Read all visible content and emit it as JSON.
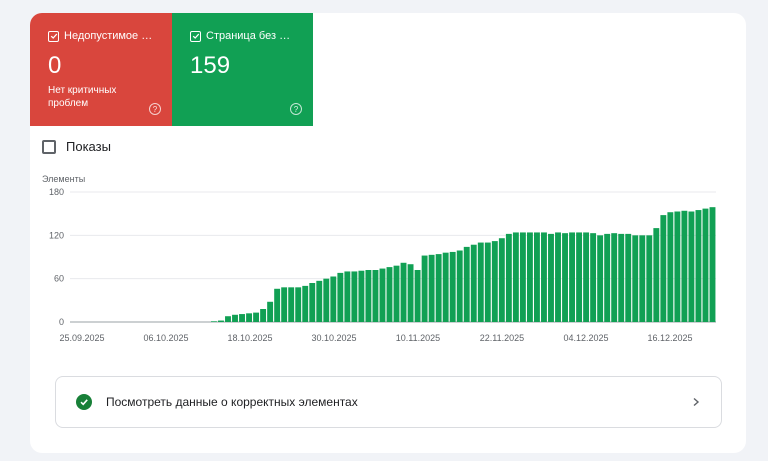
{
  "tiles": {
    "invalid": {
      "label": "Недопустимое з...",
      "count": "0",
      "sub": "Нет критичных проблем",
      "color": "#d9463d",
      "checked": true
    },
    "valid": {
      "label": "Страница без ош...",
      "count": "159",
      "color": "#11a054",
      "checked": true
    }
  },
  "impressions": {
    "label": "Показы",
    "checked": false
  },
  "chart_data": {
    "type": "bar",
    "ylabel": "Элементы",
    "y_ticks": [
      "180",
      "120",
      "60",
      "0"
    ],
    "ylim": [
      0,
      180
    ],
    "x_tick_labels": [
      "25.09.2025",
      "06.10.2025",
      "18.10.2025",
      "30.10.2025",
      "10.11.2025",
      "22.11.2025",
      "04.12.2025",
      "16.12.2025"
    ],
    "series": [
      {
        "color": "#11a054",
        "values": [
          0,
          0,
          0,
          0,
          0,
          0,
          0,
          0,
          0,
          0,
          0,
          0,
          0,
          0,
          0,
          0,
          0,
          0,
          0,
          0,
          1,
          2,
          8,
          10,
          11,
          12,
          13,
          18,
          28,
          46,
          48,
          48,
          48,
          50,
          54,
          57,
          60,
          63,
          68,
          70,
          70,
          71,
          72,
          72,
          74,
          76,
          78,
          82,
          80,
          72,
          92,
          93,
          94,
          96,
          97,
          99,
          104,
          107,
          110,
          110,
          112,
          116,
          122,
          124,
          124,
          124,
          124,
          124,
          122,
          124,
          123,
          124,
          124,
          124,
          123,
          120,
          122,
          123,
          122,
          122,
          120,
          120,
          120,
          130,
          148,
          152,
          153,
          154,
          153,
          155,
          157,
          159
        ]
      }
    ],
    "grid": true
  },
  "footer": {
    "link_label": "Посмотреть данные о корректных элементах"
  }
}
